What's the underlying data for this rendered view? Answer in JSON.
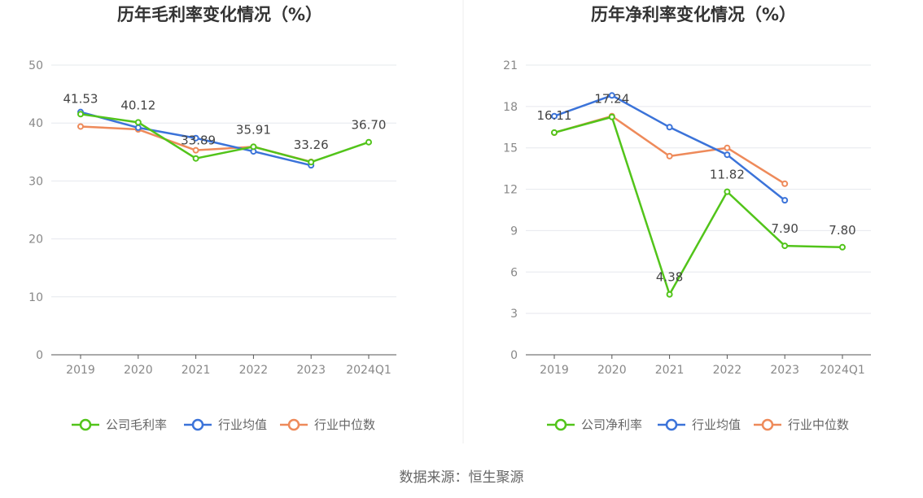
{
  "source": "数据来源：恒生聚源",
  "colors": {
    "company": "#52c41a",
    "avg": "#3b73d9",
    "median": "#ee8a5a",
    "grid": "#e6e8ee",
    "axis": "#555555"
  },
  "chart_data": [
    {
      "type": "line",
      "title": "历年毛利率变化情况（%）",
      "categories": [
        "2019",
        "2020",
        "2021",
        "2022",
        "2023",
        "2024Q1"
      ],
      "yticks": [
        "0",
        "10",
        "20",
        "30",
        "40",
        "50"
      ],
      "ylim": [
        0,
        50
      ],
      "grid": true,
      "legend_position": "bottom",
      "series": [
        {
          "name": "公司毛利率",
          "key": "company",
          "values": [
            41.53,
            40.12,
            33.89,
            35.91,
            33.26,
            36.7
          ],
          "labels": [
            "41.53",
            "40.12",
            "33.89",
            "35.91",
            "33.26",
            "36.70"
          ]
        },
        {
          "name": "行业均值",
          "key": "avg",
          "values": [
            41.9,
            39.2,
            37.4,
            35.1,
            32.7,
            null
          ]
        },
        {
          "name": "行业中位数",
          "key": "median",
          "values": [
            39.4,
            38.9,
            35.3,
            35.9,
            33.3,
            null
          ]
        }
      ]
    },
    {
      "type": "line",
      "title": "历年净利率变化情况（%）",
      "categories": [
        "2019",
        "2020",
        "2021",
        "2022",
        "2023",
        "2024Q1"
      ],
      "yticks": [
        "0",
        "3",
        "6",
        "9",
        "12",
        "15",
        "18",
        "21"
      ],
      "ylim": [
        0,
        21
      ],
      "grid": true,
      "legend_position": "bottom",
      "series": [
        {
          "name": "公司净利率",
          "key": "company",
          "values": [
            16.11,
            17.24,
            4.38,
            11.82,
            7.9,
            7.8
          ],
          "labels": [
            "16.11",
            "17.24",
            "4.38",
            "11.82",
            "7.90",
            "7.80"
          ]
        },
        {
          "name": "行业均值",
          "key": "avg",
          "values": [
            17.3,
            18.8,
            16.5,
            14.5,
            11.2,
            null
          ]
        },
        {
          "name": "行业中位数",
          "key": "median",
          "values": [
            16.1,
            17.3,
            14.4,
            15.0,
            12.4,
            null
          ]
        }
      ]
    }
  ]
}
